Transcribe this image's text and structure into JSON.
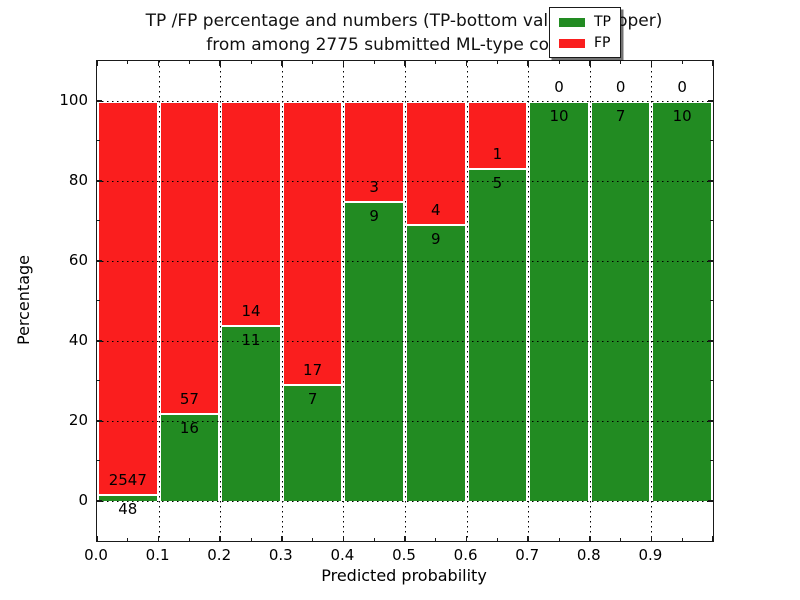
{
  "figure": {
    "title_line1": "TP /FP percentage and numbers (TP-bottom value, FP-upper)",
    "title_line2": "from among 2775 submitted ML-type contacts"
  },
  "chart_data": {
    "type": "bar",
    "variant": "stacked-percentage",
    "title": "TP /FP percentage and numbers (TP-bottom value, FP-upper)\nfrom among 2775 submitted ML-type contacts",
    "xlabel": "Predicted probability",
    "ylabel": "Percentage",
    "xlim": [
      0.0,
      1.0
    ],
    "ylim": [
      -10,
      110
    ],
    "grid": true,
    "bin_width": 0.1,
    "categories": [
      "0.0-0.1",
      "0.1-0.2",
      "0.2-0.3",
      "0.3-0.4",
      "0.4-0.5",
      "0.5-0.6",
      "0.6-0.7",
      "0.7-0.8",
      "0.8-0.9",
      "0.9-1.0"
    ],
    "x_tick_labels": [
      "0.0",
      "0.1",
      "0.2",
      "0.3",
      "0.4",
      "0.5",
      "0.6",
      "0.7",
      "0.8",
      "0.9"
    ],
    "y_ticks": [
      0,
      20,
      40,
      60,
      80,
      100
    ],
    "series": [
      {
        "name": "TP",
        "color": "#228b22",
        "values": [
          48,
          16,
          11,
          7,
          9,
          9,
          5,
          10,
          7,
          10
        ]
      },
      {
        "name": "FP",
        "color": "#fa1e1e",
        "values": [
          2547,
          57,
          14,
          17,
          3,
          4,
          1,
          0,
          0,
          0
        ]
      }
    ],
    "tp_percent_of_bin": [
      1.85,
      21.92,
      44.0,
      29.17,
      75.0,
      69.23,
      83.33,
      100.0,
      100.0,
      100.0
    ],
    "total_contacts": 2775,
    "legend": {
      "position": "upper right",
      "entries": [
        {
          "label": "TP",
          "color": "#228b22"
        },
        {
          "label": "FP",
          "color": "#fa1e1e"
        }
      ]
    }
  }
}
